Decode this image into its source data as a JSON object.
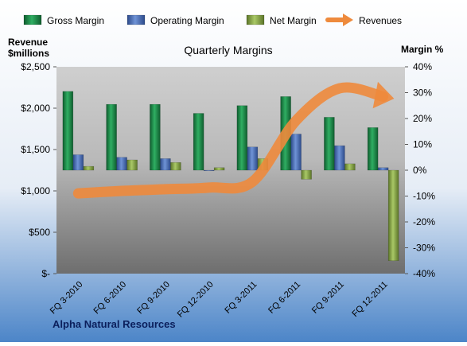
{
  "chart_data": {
    "type": "bar",
    "title": "Quarterly Margins",
    "left_axis_label_line1": "Revenue",
    "left_axis_label_line2": "$millions",
    "right_axis_label": "Margin %",
    "footer_label": "Alpha Natural Resources",
    "categories": [
      "FQ 3-2010",
      "FQ 6-2010",
      "FQ 9-2010",
      "FQ 12-2010",
      "FQ 3-2011",
      "FQ 6-2011",
      "FQ 9-2011",
      "FQ 12-2011"
    ],
    "series": [
      {
        "name": "Gross Margin",
        "axis": "right",
        "values": [
          30.5,
          25.5,
          25.5,
          22.0,
          25.0,
          28.5,
          20.5,
          16.5
        ]
      },
      {
        "name": "Operating Margin",
        "axis": "right",
        "values": [
          6.0,
          5.0,
          4.5,
          0.0,
          9.0,
          14.0,
          9.5,
          1.0
        ]
      },
      {
        "name": "Net Margin",
        "axis": "right",
        "values": [
          1.5,
          4.0,
          3.0,
          1.0,
          4.5,
          -3.5,
          2.5,
          -35.0
        ]
      },
      {
        "name": "Revenues",
        "axis": "left",
        "type": "line",
        "values": [
          970,
          1000,
          1020,
          1040,
          1110,
          1850,
          2240,
          2140
        ]
      }
    ],
    "left_axis": {
      "min": 0,
      "max": 2500,
      "ticks": [
        "$-",
        "$500",
        "$1,000",
        "$1,500",
        "$2,000",
        "$2,500"
      ],
      "tick_values": [
        0,
        500,
        1000,
        1500,
        2000,
        2500
      ]
    },
    "right_axis": {
      "min": -40,
      "max": 40,
      "ticks": [
        "-40%",
        "-30%",
        "-20%",
        "-10%",
        "0%",
        "10%",
        "20%",
        "30%",
        "40%"
      ],
      "tick_values": [
        -40,
        -30,
        -20,
        -10,
        0,
        10,
        20,
        30,
        40
      ]
    },
    "legend_position": "top",
    "grid": false,
    "colors": {
      "Gross Margin": "#1f8a4c",
      "Operating Margin": "#4b6fb5",
      "Net Margin": "#8aa84a",
      "Revenues": "#ee8a3c"
    }
  }
}
